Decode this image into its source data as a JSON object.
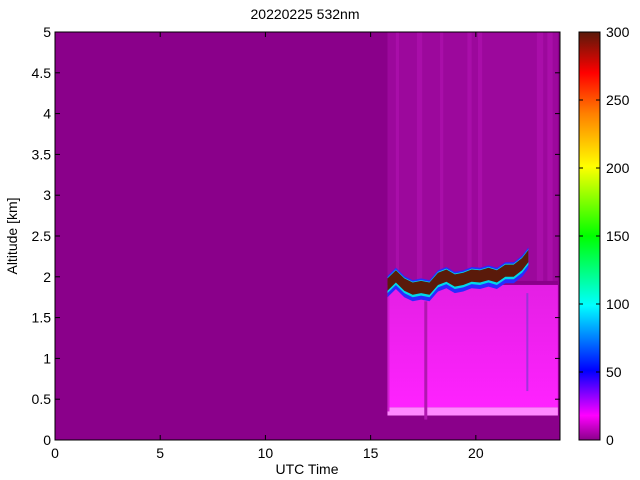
{
  "chart_data": {
    "type": "heatmap",
    "title": "20220225 532nm",
    "xlabel": "UTC Time",
    "ylabel": "Altitude [km]",
    "xlim": [
      0,
      24
    ],
    "ylim": [
      0,
      5
    ],
    "x_ticks": [
      "0",
      "5",
      "10",
      "15",
      "20"
    ],
    "x_tick_values": [
      0,
      5,
      10,
      15,
      20
    ],
    "y_ticks": [
      "0",
      "0.5",
      "1",
      "1.5",
      "2",
      "2.5",
      "3",
      "3.5",
      "4",
      "4.5",
      "5"
    ],
    "y_tick_values": [
      0,
      0.5,
      1,
      1.5,
      2,
      2.5,
      3,
      3.5,
      4,
      4.5,
      5
    ],
    "colorbar": {
      "range": [
        0,
        300
      ],
      "ticks": [
        "0",
        "50",
        "100",
        "150",
        "200",
        "250",
        "300"
      ],
      "tick_values": [
        0,
        50,
        100,
        150,
        200,
        250,
        300
      ],
      "colormap": [
        "#8a008a",
        "#ff00ff",
        "#0000ff",
        "#00ffff",
        "#00ff00",
        "#ffff00",
        "#ff8000",
        "#ff0000",
        "#5a1a0a"
      ]
    },
    "grid": false,
    "background_value": 0,
    "data_start_utc": 15.8,
    "data_end_utc": 23.9,
    "features": [
      {
        "name": "near-surface layer",
        "x_range": [
          15.8,
          23.9
        ],
        "y_range": [
          0.3,
          0.4
        ],
        "value": 40
      },
      {
        "name": "boundary layer aerosol",
        "x_range": [
          15.8,
          23.9
        ],
        "y_range": [
          0.4,
          1.9
        ],
        "value": 25
      },
      {
        "name": "cloud top layer",
        "x_range": [
          15.8,
          22.6
        ],
        "y_range": [
          1.85,
          2.4
        ],
        "value": 300
      }
    ],
    "cloud_top_profile": {
      "x": [
        15.8,
        16.2,
        16.6,
        17.0,
        17.4,
        17.8,
        18.2,
        18.6,
        19.0,
        19.4,
        19.8,
        20.2,
        20.6,
        21.0,
        21.4,
        21.8,
        22.2,
        22.5
      ],
      "y": [
        1.95,
        2.05,
        1.95,
        1.9,
        1.92,
        1.9,
        2.02,
        2.06,
        2.0,
        2.02,
        2.06,
        2.05,
        2.08,
        2.05,
        2.12,
        2.12,
        2.2,
        2.3
      ]
    }
  }
}
